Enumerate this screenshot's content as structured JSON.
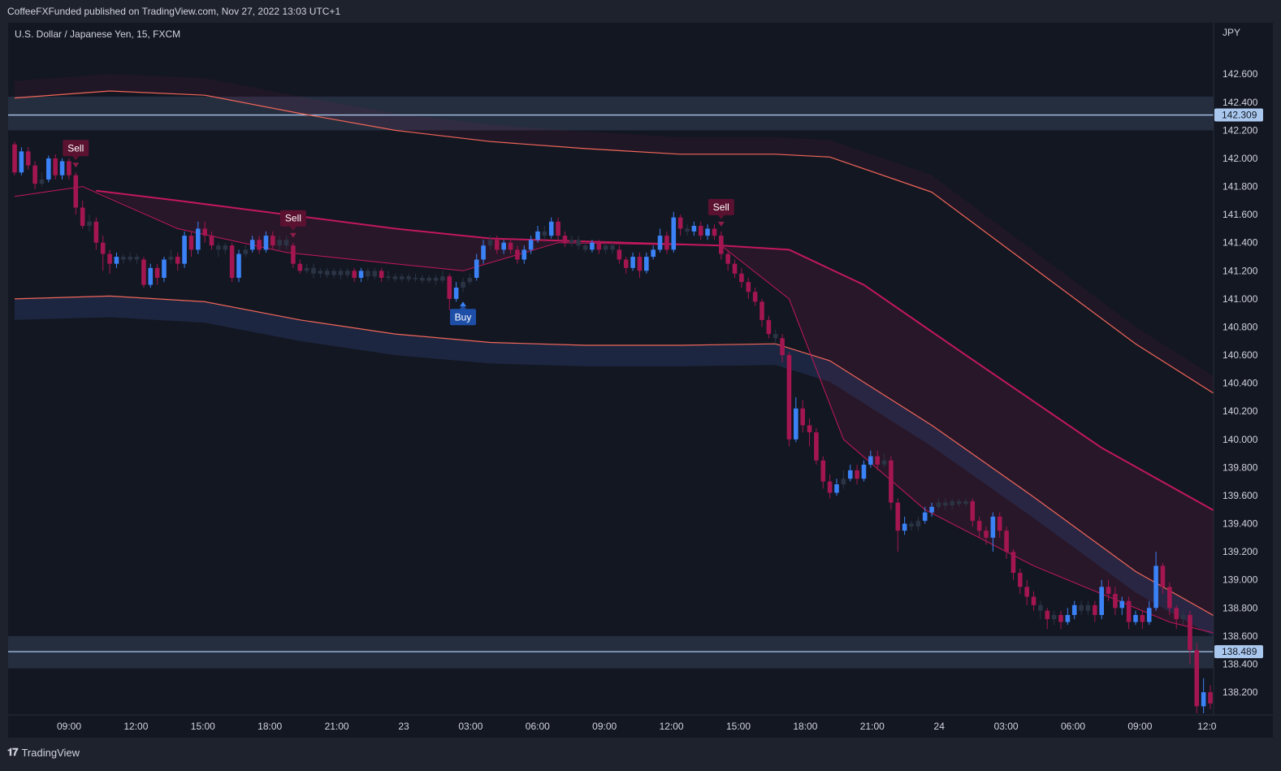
{
  "header": {
    "published": "CoffeeFXFunded published on TradingView.com, Nov 27, 2022 13:03 UTC+1"
  },
  "symbol": {
    "label": "U.S. Dollar / Japanese Yen, 15, FXCM"
  },
  "footer": {
    "brand": "TradingView",
    "logo": "tradingview-logo-icon"
  },
  "colors": {
    "bull": "#3b82f6",
    "bear": "#a3164f",
    "neutral": "#2b3445",
    "level": "#aac8ee",
    "band_red": "#f26659",
    "ma": "#c2185b",
    "bg": "#131722"
  },
  "chart_data": {
    "type": "candlestick",
    "currency": "JPY",
    "ylim": [
      138.05,
      142.85
    ],
    "y_ticks": [
      "142.600",
      "142.400",
      "142.200",
      "142.000",
      "141.800",
      "141.600",
      "141.400",
      "141.200",
      "141.000",
      "140.800",
      "140.600",
      "140.400",
      "140.200",
      "140.000",
      "139.800",
      "139.600",
      "139.400",
      "139.200",
      "139.000",
      "138.800",
      "138.600",
      "138.400",
      "138.200"
    ],
    "x_ticks": [
      "09:00",
      "12:00",
      "15:00",
      "18:00",
      "21:00",
      "23",
      "03:00",
      "06:00",
      "09:00",
      "12:00",
      "15:00",
      "18:00",
      "21:00",
      "24",
      "03:00",
      "06:00",
      "09:00",
      "12:0"
    ],
    "price_levels": [
      {
        "value": 142.309,
        "label": "142.309",
        "zone": [
          142.2,
          142.44
        ]
      },
      {
        "value": 138.489,
        "label": "138.489",
        "zone": [
          138.37,
          138.6
        ]
      }
    ],
    "signals": [
      {
        "type": "sell",
        "label": "Sell",
        "bar": 9
      },
      {
        "type": "sell",
        "label": "Sell",
        "bar": 41
      },
      {
        "type": "buy",
        "label": "Buy",
        "bar": 66
      },
      {
        "type": "sell",
        "label": "Sell",
        "bar": 104
      }
    ],
    "upper_band": [
      [
        0,
        142.43
      ],
      [
        14,
        142.48
      ],
      [
        28,
        142.45
      ],
      [
        42,
        142.32
      ],
      [
        56,
        142.2
      ],
      [
        70,
        142.12
      ],
      [
        84,
        142.07
      ],
      [
        98,
        142.03
      ],
      [
        112,
        142.03
      ],
      [
        120,
        142.01
      ],
      [
        135,
        141.76
      ],
      [
        150,
        141.22
      ],
      [
        165,
        140.68
      ],
      [
        180,
        140.22
      ]
    ],
    "lower_band": [
      [
        0,
        141.0
      ],
      [
        14,
        141.02
      ],
      [
        28,
        140.98
      ],
      [
        42,
        140.85
      ],
      [
        56,
        140.75
      ],
      [
        70,
        140.69
      ],
      [
        84,
        140.67
      ],
      [
        98,
        140.67
      ],
      [
        112,
        140.68
      ],
      [
        120,
        140.56
      ],
      [
        135,
        140.1
      ],
      [
        150,
        139.59
      ],
      [
        165,
        139.06
      ],
      [
        180,
        138.65
      ]
    ],
    "ma_slow": [
      [
        12,
        141.77
      ],
      [
        24,
        141.7
      ],
      [
        40,
        141.6
      ],
      [
        56,
        141.5
      ],
      [
        70,
        141.43
      ],
      [
        90,
        141.4
      ],
      [
        104,
        141.38
      ],
      [
        114,
        141.35
      ],
      [
        125,
        141.1
      ],
      [
        140,
        140.6
      ],
      [
        160,
        139.94
      ],
      [
        180,
        139.4
      ]
    ],
    "ma_fast": [
      [
        0,
        141.73
      ],
      [
        10,
        141.8
      ],
      [
        24,
        141.5
      ],
      [
        40,
        141.33
      ],
      [
        56,
        141.25
      ],
      [
        66,
        141.2
      ],
      [
        80,
        141.4
      ],
      [
        104,
        141.38
      ],
      [
        114,
        141.0
      ],
      [
        122,
        140.0
      ],
      [
        134,
        139.5
      ],
      [
        150,
        139.1
      ],
      [
        170,
        138.7
      ],
      [
        180,
        138.58
      ]
    ],
    "candles": [
      [
        142.1,
        141.9,
        142.12,
        141.88
      ],
      [
        141.9,
        142.05,
        142.08,
        141.88
      ],
      [
        142.05,
        141.95,
        142.08,
        141.92
      ],
      [
        141.95,
        141.82,
        141.98,
        141.78
      ],
      [
        141.82,
        141.85,
        141.9,
        141.8
      ],
      [
        141.85,
        142.0,
        142.02,
        141.83
      ],
      [
        142.0,
        141.88,
        142.03,
        141.85
      ],
      [
        141.88,
        141.98,
        142.0,
        141.85
      ],
      [
        141.98,
        141.88,
        142.0,
        141.85
      ],
      [
        141.88,
        141.65,
        141.9,
        141.6
      ],
      [
        141.65,
        141.52,
        141.7,
        141.5
      ],
      [
        141.52,
        141.55,
        141.6,
        141.48
      ],
      [
        141.55,
        141.4,
        141.58,
        141.35
      ],
      [
        141.4,
        141.32,
        141.45,
        141.2
      ],
      [
        141.32,
        141.25,
        141.35,
        141.18
      ],
      [
        141.25,
        141.3,
        141.33,
        141.22
      ],
      [
        141.3,
        141.28,
        141.32,
        141.25
      ],
      [
        141.28,
        141.3,
        141.33,
        141.26
      ],
      [
        141.3,
        141.28,
        141.32,
        141.25
      ],
      [
        141.28,
        141.1,
        141.3,
        141.08
      ],
      [
        141.1,
        141.22,
        141.25,
        141.08
      ],
      [
        141.22,
        141.15,
        141.25,
        141.1
      ],
      [
        141.15,
        141.28,
        141.3,
        141.12
      ],
      [
        141.28,
        141.3,
        141.35,
        141.25
      ],
      [
        141.3,
        141.25,
        141.33,
        141.2
      ],
      [
        141.25,
        141.45,
        141.48,
        141.22
      ],
      [
        141.45,
        141.35,
        141.48,
        141.3
      ],
      [
        141.35,
        141.5,
        141.55,
        141.32
      ],
      [
        141.5,
        141.45,
        141.55,
        141.4
      ],
      [
        141.45,
        141.38,
        141.48,
        141.35
      ],
      [
        141.38,
        141.35,
        141.4,
        141.3
      ],
      [
        141.35,
        141.38,
        141.4,
        141.32
      ],
      [
        141.38,
        141.15,
        141.4,
        141.12
      ],
      [
        141.15,
        141.32,
        141.35,
        141.12
      ],
      [
        141.32,
        141.35,
        141.38,
        141.3
      ],
      [
        141.35,
        141.42,
        141.45,
        141.33
      ],
      [
        141.42,
        141.35,
        141.45,
        141.32
      ],
      [
        141.35,
        141.45,
        141.48,
        141.33
      ],
      [
        141.45,
        141.38,
        141.48,
        141.35
      ],
      [
        141.38,
        141.42,
        141.45,
        141.35
      ],
      [
        141.42,
        141.38,
        141.45,
        141.35
      ],
      [
        141.38,
        141.25,
        141.4,
        141.22
      ],
      [
        141.25,
        141.2,
        141.28,
        141.18
      ],
      [
        141.2,
        141.22,
        141.25,
        141.18
      ],
      [
        141.22,
        141.18,
        141.25,
        141.15
      ],
      [
        141.18,
        141.2,
        141.22,
        141.15
      ],
      [
        141.2,
        141.17,
        141.22,
        141.15
      ],
      [
        141.17,
        141.2,
        141.22,
        141.15
      ],
      [
        141.2,
        141.17,
        141.22,
        141.14
      ],
      [
        141.17,
        141.2,
        141.22,
        141.15
      ],
      [
        141.2,
        141.15,
        141.22,
        141.12
      ],
      [
        141.15,
        141.2,
        141.22,
        141.12
      ],
      [
        141.2,
        141.16,
        141.22,
        141.13
      ],
      [
        141.16,
        141.2,
        141.22,
        141.14
      ],
      [
        141.2,
        141.15,
        141.22,
        141.12
      ],
      [
        141.15,
        141.16,
        141.2,
        141.13
      ],
      [
        141.16,
        141.14,
        141.18,
        141.12
      ],
      [
        141.14,
        141.16,
        141.18,
        141.12
      ],
      [
        141.16,
        141.14,
        141.18,
        141.12
      ],
      [
        141.14,
        141.15,
        141.18,
        141.12
      ],
      [
        141.15,
        141.13,
        141.17,
        141.11
      ],
      [
        141.13,
        141.15,
        141.17,
        141.11
      ],
      [
        141.15,
        141.13,
        141.17,
        141.1
      ],
      [
        141.13,
        141.16,
        141.2,
        141.11
      ],
      [
        141.16,
        141.0,
        141.18,
        140.92
      ],
      [
        141.0,
        141.08,
        141.12,
        140.98
      ],
      [
        141.08,
        141.12,
        141.15,
        141.05
      ],
      [
        141.12,
        141.15,
        141.18,
        141.1
      ],
      [
        141.15,
        141.28,
        141.32,
        141.13
      ],
      [
        141.28,
        141.38,
        141.42,
        141.25
      ],
      [
        141.38,
        141.42,
        141.45,
        141.35
      ],
      [
        141.42,
        141.35,
        141.45,
        141.32
      ],
      [
        141.35,
        141.4,
        141.42,
        141.32
      ],
      [
        141.4,
        141.35,
        141.43,
        141.32
      ],
      [
        141.35,
        141.28,
        141.38,
        141.25
      ],
      [
        141.28,
        141.35,
        141.38,
        141.25
      ],
      [
        141.35,
        141.42,
        141.45,
        141.32
      ],
      [
        141.42,
        141.48,
        141.52,
        141.4
      ],
      [
        141.48,
        141.45,
        141.52,
        141.42
      ],
      [
        141.45,
        141.55,
        141.58,
        141.43
      ],
      [
        141.55,
        141.45,
        141.58,
        141.42
      ],
      [
        141.45,
        141.4,
        141.48,
        141.37
      ],
      [
        141.4,
        141.42,
        141.45,
        141.37
      ],
      [
        141.42,
        141.38,
        141.45,
        141.35
      ],
      [
        141.38,
        141.35,
        141.4,
        141.33
      ],
      [
        141.35,
        141.4,
        141.42,
        141.33
      ],
      [
        141.4,
        141.35,
        141.42,
        141.32
      ],
      [
        141.35,
        141.38,
        141.4,
        141.32
      ],
      [
        141.38,
        141.35,
        141.4,
        141.32
      ],
      [
        141.35,
        141.28,
        141.38,
        141.25
      ],
      [
        141.28,
        141.22,
        141.3,
        141.18
      ],
      [
        141.22,
        141.3,
        141.33,
        141.2
      ],
      [
        141.3,
        141.2,
        141.33,
        141.15
      ],
      [
        141.2,
        141.3,
        141.33,
        141.18
      ],
      [
        141.3,
        141.35,
        141.38,
        141.28
      ],
      [
        141.35,
        141.45,
        141.5,
        141.33
      ],
      [
        141.45,
        141.35,
        141.48,
        141.32
      ],
      [
        141.35,
        141.58,
        141.62,
        141.33
      ],
      [
        141.58,
        141.5,
        141.6,
        141.45
      ],
      [
        141.5,
        141.48,
        141.53,
        141.45
      ],
      [
        141.48,
        141.52,
        141.55,
        141.45
      ],
      [
        141.52,
        141.45,
        141.55,
        141.42
      ],
      [
        141.45,
        141.5,
        141.53,
        141.42
      ],
      [
        141.5,
        141.45,
        141.53,
        141.42
      ],
      [
        141.45,
        141.32,
        141.48,
        141.28
      ],
      [
        141.32,
        141.25,
        141.35,
        141.2
      ],
      [
        141.25,
        141.18,
        141.28,
        141.15
      ],
      [
        141.18,
        141.12,
        141.22,
        141.08
      ],
      [
        141.12,
        141.05,
        141.15,
        141.0
      ],
      [
        141.05,
        140.98,
        141.08,
        140.95
      ],
      [
        140.98,
        140.85,
        141.0,
        140.8
      ],
      [
        140.85,
        140.75,
        140.88,
        140.72
      ],
      [
        140.75,
        140.72,
        140.78,
        140.68
      ],
      [
        140.72,
        140.6,
        140.75,
        140.55
      ],
      [
        140.6,
        140.0,
        140.62,
        139.95
      ],
      [
        140.0,
        140.22,
        140.3,
        139.98
      ],
      [
        140.22,
        140.1,
        140.28,
        140.05
      ],
      [
        140.1,
        140.05,
        140.15,
        139.95
      ],
      [
        140.05,
        139.85,
        140.08,
        139.82
      ],
      [
        139.85,
        139.7,
        139.88,
        139.65
      ],
      [
        139.7,
        139.62,
        139.75,
        139.58
      ],
      [
        139.62,
        139.68,
        139.72,
        139.6
      ],
      [
        139.68,
        139.72,
        139.78,
        139.65
      ],
      [
        139.72,
        139.78,
        139.82,
        139.7
      ],
      [
        139.78,
        139.72,
        139.82,
        139.68
      ],
      [
        139.72,
        139.82,
        139.85,
        139.7
      ],
      [
        139.82,
        139.88,
        139.92,
        139.8
      ],
      [
        139.88,
        139.82,
        139.92,
        139.78
      ],
      [
        139.82,
        139.85,
        139.9,
        139.8
      ],
      [
        139.85,
        139.55,
        139.88,
        139.5
      ],
      [
        139.55,
        139.35,
        139.58,
        139.2
      ],
      [
        139.35,
        139.4,
        139.45,
        139.32
      ],
      [
        139.4,
        139.38,
        139.42,
        139.35
      ],
      [
        139.38,
        139.42,
        139.45,
        139.35
      ],
      [
        139.42,
        139.48,
        139.52,
        139.4
      ],
      [
        139.48,
        139.52,
        139.55,
        139.45
      ],
      [
        139.52,
        139.55,
        139.58,
        139.5
      ],
      [
        139.55,
        139.53,
        139.58,
        139.5
      ],
      [
        139.53,
        139.56,
        139.58,
        139.5
      ],
      [
        139.56,
        139.54,
        139.58,
        139.52
      ],
      [
        139.54,
        139.56,
        139.58,
        139.52
      ],
      [
        139.56,
        139.42,
        139.58,
        139.38
      ],
      [
        139.42,
        139.35,
        139.45,
        139.3
      ],
      [
        139.35,
        139.3,
        139.38,
        139.25
      ],
      [
        139.3,
        139.45,
        139.48,
        139.2
      ],
      [
        139.45,
        139.35,
        139.48,
        139.3
      ],
      [
        139.35,
        139.2,
        139.38,
        139.15
      ],
      [
        139.2,
        139.05,
        139.22,
        139.0
      ],
      [
        139.05,
        138.95,
        139.08,
        138.9
      ],
      [
        138.95,
        138.88,
        139.0,
        138.82
      ],
      [
        138.88,
        138.82,
        138.92,
        138.78
      ],
      [
        138.82,
        138.78,
        138.85,
        138.72
      ],
      [
        138.78,
        138.72,
        138.8,
        138.65
      ],
      [
        138.72,
        138.75,
        138.78,
        138.68
      ],
      [
        138.75,
        138.7,
        138.78,
        138.65
      ],
      [
        138.7,
        138.75,
        138.8,
        138.68
      ],
      [
        138.75,
        138.82,
        138.85,
        138.72
      ],
      [
        138.82,
        138.78,
        138.85,
        138.75
      ],
      [
        138.78,
        138.82,
        138.85,
        138.75
      ],
      [
        138.82,
        138.75,
        138.85,
        138.7
      ],
      [
        138.75,
        138.95,
        139.0,
        138.72
      ],
      [
        138.95,
        138.9,
        139.0,
        138.85
      ],
      [
        138.9,
        138.8,
        138.95,
        138.75
      ],
      [
        138.8,
        138.85,
        138.88,
        138.75
      ],
      [
        138.85,
        138.7,
        138.88,
        138.65
      ],
      [
        138.7,
        138.75,
        138.78,
        138.68
      ],
      [
        138.75,
        138.7,
        138.78,
        138.65
      ],
      [
        138.7,
        138.8,
        138.85,
        138.68
      ],
      [
        138.8,
        139.1,
        139.2,
        138.78
      ],
      [
        139.1,
        138.95,
        139.12,
        138.9
      ],
      [
        138.95,
        138.8,
        138.98,
        138.75
      ],
      [
        138.8,
        138.72,
        138.82,
        138.65
      ],
      [
        138.72,
        138.75,
        138.78,
        138.68
      ],
      [
        138.75,
        138.5,
        138.78,
        138.4
      ],
      [
        138.5,
        138.1,
        138.55,
        138.05
      ],
      [
        138.1,
        138.2,
        138.3,
        138.05
      ],
      [
        138.2,
        138.12,
        138.25,
        138.08
      ]
    ]
  }
}
